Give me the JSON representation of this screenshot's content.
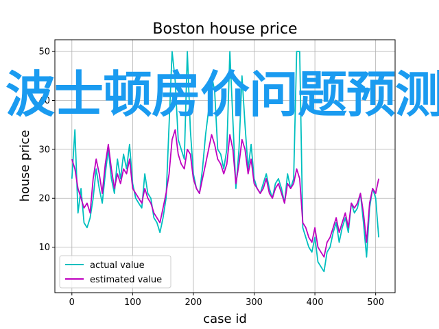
{
  "overlay_text": "波士顿房价问题预测",
  "colors": {
    "actual": "#00bfbf",
    "estimated": "#bf00bf",
    "grid": "#b0b0b0",
    "overlay": "#1a9bf0"
  },
  "chart_data": {
    "type": "line",
    "title": "Boston house price",
    "xlabel": "case id",
    "ylabel": "house price",
    "xlim": [
      -28,
      532
    ],
    "ylim": [
      0.7,
      52.4
    ],
    "xticks": [
      0,
      100,
      200,
      300,
      400,
      500
    ],
    "yticks": [
      10,
      20,
      30,
      40,
      50
    ],
    "grid": true,
    "legend": "lower-left",
    "series": [
      {
        "name": "actual value",
        "color": "#00bfbf",
        "x": [
          0,
          5,
          10,
          15,
          20,
          25,
          30,
          35,
          40,
          45,
          50,
          55,
          60,
          65,
          70,
          75,
          80,
          85,
          90,
          95,
          100,
          105,
          110,
          115,
          120,
          125,
          130,
          135,
          140,
          145,
          150,
          155,
          160,
          165,
          170,
          175,
          180,
          185,
          190,
          195,
          200,
          205,
          210,
          215,
          220,
          225,
          230,
          235,
          240,
          245,
          250,
          255,
          260,
          265,
          270,
          275,
          280,
          285,
          290,
          295,
          300,
          305,
          310,
          315,
          320,
          325,
          330,
          335,
          340,
          345,
          350,
          355,
          360,
          365,
          370,
          375,
          380,
          385,
          390,
          395,
          400,
          405,
          410,
          415,
          420,
          425,
          430,
          435,
          440,
          445,
          450,
          455,
          460,
          465,
          470,
          475,
          480,
          485,
          490,
          495,
          500,
          505
        ],
        "values": [
          24,
          34,
          17,
          22,
          15,
          14,
          16,
          20,
          26,
          22,
          19,
          25,
          30,
          24,
          21,
          28,
          24,
          29,
          26,
          31,
          23,
          20,
          19,
          18,
          25,
          21,
          20,
          16,
          15,
          13,
          16,
          20,
          35,
          50,
          44,
          32,
          30,
          28,
          50,
          34,
          25,
          22,
          21,
          26,
          33,
          38,
          45,
          42,
          30,
          29,
          26,
          30,
          50,
          36,
          22,
          30,
          45,
          35,
          26,
          31,
          24,
          22,
          21,
          23,
          25,
          22,
          20,
          23,
          24,
          22,
          19,
          25,
          22,
          24,
          50,
          50,
          14,
          12,
          10,
          9,
          12,
          7,
          6,
          5,
          9,
          10,
          13,
          15,
          11,
          14,
          16,
          13,
          19,
          17,
          18,
          21,
          15,
          8,
          18,
          22,
          20,
          12
        ]
      },
      {
        "name": "estimated value",
        "color": "#bf00bf",
        "x": [
          0,
          5,
          10,
          15,
          20,
          25,
          30,
          35,
          40,
          45,
          50,
          55,
          60,
          65,
          70,
          75,
          80,
          85,
          90,
          95,
          100,
          105,
          110,
          115,
          120,
          125,
          130,
          135,
          140,
          145,
          150,
          155,
          160,
          165,
          170,
          175,
          180,
          185,
          190,
          195,
          200,
          205,
          210,
          215,
          220,
          225,
          230,
          235,
          240,
          245,
          250,
          255,
          260,
          265,
          270,
          275,
          280,
          285,
          290,
          295,
          300,
          305,
          310,
          315,
          320,
          325,
          330,
          335,
          340,
          345,
          350,
          355,
          360,
          365,
          370,
          375,
          380,
          385,
          390,
          395,
          400,
          405,
          410,
          415,
          420,
          425,
          430,
          435,
          440,
          445,
          450,
          455,
          460,
          465,
          470,
          475,
          480,
          485,
          490,
          495,
          500,
          505
        ],
        "values": [
          28,
          26,
          22,
          20,
          18,
          19,
          17,
          24,
          28,
          25,
          21,
          27,
          31,
          26,
          22,
          25,
          23,
          26,
          25,
          28,
          22,
          21,
          20,
          19,
          22,
          20,
          19,
          17,
          16,
          15,
          18,
          21,
          25,
          32,
          34,
          29,
          27,
          26,
          30,
          29,
          24,
          22,
          21,
          24,
          27,
          30,
          33,
          31,
          28,
          27,
          25,
          27,
          33,
          30,
          23,
          27,
          32,
          30,
          25,
          28,
          23,
          22,
          21,
          22,
          24,
          21,
          20,
          22,
          23,
          21,
          19,
          23,
          22,
          23,
          26,
          24,
          15,
          14,
          12,
          11,
          14,
          10,
          9,
          8,
          11,
          12,
          14,
          16,
          13,
          15,
          17,
          14,
          19,
          18,
          19,
          21,
          17,
          11,
          19,
          22,
          21,
          24
        ]
      }
    ]
  }
}
